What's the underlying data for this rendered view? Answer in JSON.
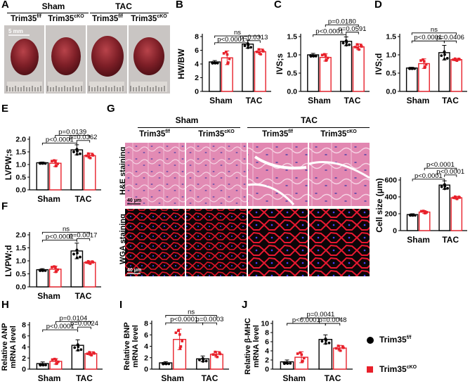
{
  "panels": {
    "A": {
      "label": "A",
      "groups": [
        "Sham",
        "TAC"
      ],
      "genotypes": [
        {
          "base": "Trim35",
          "sup": "f/f"
        },
        {
          "base": "Trim35",
          "sup": "cKO"
        },
        {
          "base": "Trim35",
          "sup": "f/f"
        },
        {
          "base": "Trim35",
          "sup": "cKO"
        }
      ],
      "scale_bar": "5 mm"
    },
    "G": {
      "label": "G",
      "groups": [
        "Sham",
        "TAC"
      ],
      "genotypes": [
        {
          "base": "Trim35",
          "sup": "f/f"
        },
        {
          "base": "Trim35",
          "sup": "cKO"
        },
        {
          "base": "Trim35",
          "sup": "f/f"
        },
        {
          "base": "Trim35",
          "sup": "cKO"
        }
      ],
      "rows": [
        "H&E staining",
        "WGA staining"
      ],
      "scale_bar": "40 μm"
    }
  },
  "legend": {
    "items": [
      {
        "base": "Trim35",
        "sup": "f/f",
        "color": "#000000",
        "marker": "circle"
      },
      {
        "base": "Trim35",
        "sup": "cKO",
        "color": "#e8202a",
        "marker": "square"
      }
    ]
  },
  "colors": {
    "ff": "#000000",
    "cko": "#e8202a"
  },
  "chart_data": [
    {
      "panel": "B",
      "type": "bar",
      "ylabel": "HW/BW",
      "ylim": [
        0,
        8
      ],
      "ticks": [
        0,
        2,
        4,
        6,
        8
      ],
      "categories": [
        "Sham",
        "TAC"
      ],
      "series": [
        {
          "name": "Trim35f/f",
          "values": [
            4.3,
            6.9
          ],
          "err": [
            0.2,
            0.6
          ]
        },
        {
          "name": "Trim35cKO",
          "values": [
            4.9,
            5.8
          ],
          "err": [
            1.0,
            0.4
          ]
        }
      ],
      "brackets": [
        {
          "text": "ns",
          "from": 0,
          "to": 3,
          "y": 8.1
        },
        {
          "text": "p=0.0313",
          "from": 2,
          "to": 3,
          "y": 7.4
        },
        {
          "text": "p<0.0001",
          "from": 0,
          "to": 2,
          "y": 7.1
        }
      ]
    },
    {
      "panel": "C",
      "type": "bar",
      "ylabel": "IVS;s",
      "ylim": [
        0,
        1.5
      ],
      "ticks": [
        0.0,
        0.5,
        1.0,
        1.5
      ],
      "categories": [
        "Sham",
        "TAC"
      ],
      "series": [
        {
          "name": "Trim35f/f",
          "values": [
            1.0,
            1.37
          ],
          "err": [
            0.04,
            0.12
          ]
        },
        {
          "name": "Trim35cKO",
          "values": [
            0.93,
            1.22
          ],
          "err": [
            0.1,
            0.08
          ]
        }
      ],
      "brackets": [
        {
          "text": "p=0.0180",
          "from": 1,
          "to": 3,
          "y": 1.82
        },
        {
          "text": "p=0.0591",
          "from": 2,
          "to": 3,
          "y": 1.62
        },
        {
          "text": "p<0.0001",
          "from": 0,
          "to": 2,
          "y": 1.55
        }
      ]
    },
    {
      "panel": "D",
      "type": "bar",
      "ylabel": "IVS;d",
      "ylim": [
        0,
        1.5
      ],
      "ticks": [
        0.0,
        0.5,
        1.0,
        1.5
      ],
      "categories": [
        "Sham",
        "TAC"
      ],
      "series": [
        {
          "name": "Trim35f/f",
          "values": [
            0.64,
            1.06
          ],
          "err": [
            0.02,
            0.2
          ]
        },
        {
          "name": "Trim35cKO",
          "values": [
            0.76,
            0.87
          ],
          "err": [
            0.13,
            0.03
          ]
        }
      ],
      "brackets": [
        {
          "text": "ns",
          "from": 0,
          "to": 3,
          "y": 1.6
        },
        {
          "text": "p=0.0406",
          "from": 2,
          "to": 3,
          "y": 1.38
        },
        {
          "text": "p<0.0001",
          "from": 0,
          "to": 2,
          "y": 1.38
        }
      ]
    },
    {
      "panel": "E",
      "type": "bar",
      "ylabel": "LVPW;s",
      "ylim": [
        0,
        2.0
      ],
      "ticks": [
        0.0,
        0.5,
        1.0,
        1.5,
        2.0
      ],
      "categories": [
        "Sham",
        "TAC"
      ],
      "series": [
        {
          "name": "Trim35f/f",
          "values": [
            1.07,
            1.58
          ],
          "err": [
            0.03,
            0.2
          ]
        },
        {
          "name": "Trim35cKO",
          "values": [
            1.05,
            1.35
          ],
          "err": [
            0.13,
            0.1
          ]
        }
      ],
      "brackets": [
        {
          "text": "p=0.0139",
          "from": 1,
          "to": 3,
          "y": 2.15
        },
        {
          "text": "p=0.0362",
          "from": 2,
          "to": 3,
          "y": 1.95
        },
        {
          "text": "p<0.0001",
          "from": 0,
          "to": 2,
          "y": 1.85
        }
      ]
    },
    {
      "panel": "F",
      "type": "bar",
      "ylabel": "LVPW;d",
      "ylim": [
        0,
        2.0
      ],
      "ticks": [
        0.0,
        0.5,
        1.0,
        1.5,
        2.0
      ],
      "categories": [
        "Sham",
        "TAC"
      ],
      "series": [
        {
          "name": "Trim35f/f",
          "values": [
            0.66,
            1.38
          ],
          "err": [
            0.04,
            0.3
          ]
        },
        {
          "name": "Trim35cKO",
          "values": [
            0.68,
            0.94
          ],
          "err": [
            0.12,
            0.05
          ]
        }
      ],
      "brackets": [
        {
          "text": "ns",
          "from": 0,
          "to": 3,
          "y": 2.1
        },
        {
          "text": "p=0.0017",
          "from": 2,
          "to": 3,
          "y": 1.85
        },
        {
          "text": "p<0.0001",
          "from": 0,
          "to": 2,
          "y": 1.8
        }
      ]
    },
    {
      "panel": "G",
      "type": "bar",
      "ylabel": "Cell size (μm)",
      "ylim": [
        0,
        600
      ],
      "ticks": [
        0,
        200,
        400,
        600
      ],
      "categories": [
        "Sham",
        "TAC"
      ],
      "series": [
        {
          "name": "Trim35f/f",
          "values": [
            190,
            540
          ],
          "err": [
            10,
            50
          ]
        },
        {
          "name": "Trim35cKO",
          "values": [
            220,
            390
          ],
          "err": [
            15,
            15
          ]
        }
      ],
      "brackets": [
        {
          "text": "p<0.0001",
          "from": 1,
          "to": 3,
          "y": 740
        },
        {
          "text": "p<0.0001",
          "from": 2,
          "to": 3,
          "y": 660
        },
        {
          "text": "p<0.0001",
          "from": 0,
          "to": 2,
          "y": 610
        }
      ]
    },
    {
      "panel": "H",
      "type": "bar",
      "ylabel": "Relative ANP mRNA level",
      "ylim": [
        0,
        8
      ],
      "ticks": [
        0,
        2,
        4,
        6,
        8
      ],
      "categories": [
        "Sham",
        "TAC"
      ],
      "series": [
        {
          "name": "Trim35f/f",
          "values": [
            1.0,
            4.3
          ],
          "err": [
            0.3,
            1.0
          ]
        },
        {
          "name": "Trim35cKO",
          "values": [
            1.4,
            2.8
          ],
          "err": [
            0.5,
            0.3
          ]
        }
      ],
      "brackets": [
        {
          "text": "p=0.0104",
          "from": 1,
          "to": 3,
          "y": 8.6
        },
        {
          "text": "p=0.0024",
          "from": 2,
          "to": 3,
          "y": 7.6
        },
        {
          "text": "p<0.0001",
          "from": 0,
          "to": 2,
          "y": 7.1
        }
      ]
    },
    {
      "panel": "I",
      "type": "bar",
      "ylabel": "Relative BNP mRNA level",
      "ylim": [
        0,
        8
      ],
      "ticks": [
        0,
        2,
        4,
        6,
        8
      ],
      "categories": [
        "Sham",
        "TAC"
      ],
      "series": [
        {
          "name": "Trim35f/f",
          "values": [
            1.1,
            1.8
          ],
          "err": [
            0.2,
            0.5
          ]
        },
        {
          "name": "Trim35cKO",
          "values": [
            5.2,
            2.6
          ],
          "err": [
            1.8,
            0.5
          ]
        }
      ],
      "brackets": [
        {
          "text": "ns",
          "from": 0,
          "to": 3,
          "y": 9.4
        },
        {
          "text": "p=0.0003",
          "from": 2,
          "to": 3,
          "y": 8.1
        },
        {
          "text": "p<0.0001",
          "from": 0,
          "to": 2,
          "y": 8.1
        }
      ]
    },
    {
      "panel": "J",
      "type": "bar",
      "ylabel": "Relative β-MHC mRNA level",
      "ylim": [
        0,
        10
      ],
      "ticks": [
        0,
        2,
        4,
        6,
        8,
        10
      ],
      "categories": [
        "Sham",
        "TAC"
      ],
      "series": [
        {
          "name": "Trim35f/f",
          "values": [
            1.6,
            6.5
          ],
          "err": [
            0.4,
            1.0
          ]
        },
        {
          "name": "Trim35cKO",
          "values": [
            2.6,
            4.6
          ],
          "err": [
            1.2,
            0.6
          ]
        }
      ],
      "brackets": [
        {
          "text": "p=0.0041",
          "from": 1,
          "to": 3,
          "y": 11.2
        },
        {
          "text": "p=0.0048",
          "from": 2,
          "to": 3,
          "y": 10.0
        },
        {
          "text": "p<0.0001",
          "from": 0,
          "to": 2,
          "y": 10.0
        }
      ]
    }
  ]
}
